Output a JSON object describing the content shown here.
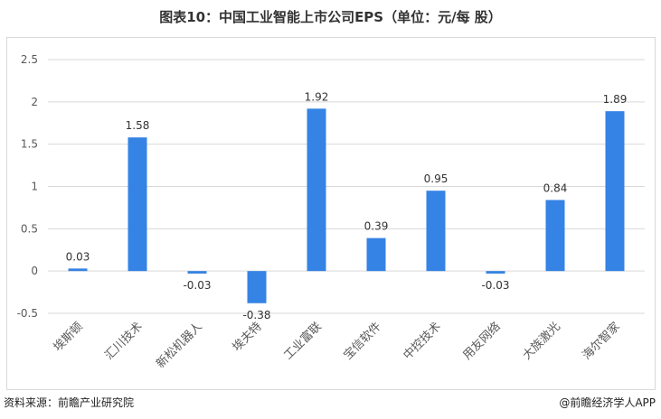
{
  "title": "图表10：中国工业智能上市公司EPS（单位：元/每 股）",
  "source": "资料来源：前瞻产业研究院",
  "brand": "@前瞻经济学人APP",
  "colors": {
    "bar": "#3583e4",
    "grid": "#d9d9d9",
    "axis_text": "#595959"
  },
  "chart_data": {
    "type": "bar",
    "title": "图表10：中国工业智能上市公司EPS（单位：元/每 股）",
    "xlabel": "",
    "ylabel": "",
    "categories": [
      "埃斯顿",
      "汇川技术",
      "新松机器人",
      "埃夫特",
      "工业富联",
      "宝信软件",
      "中控技术",
      "用友网络",
      "大族激光",
      "海尔智家"
    ],
    "values": [
      0.03,
      1.58,
      -0.03,
      -0.38,
      1.92,
      0.39,
      0.95,
      -0.03,
      0.84,
      1.89
    ],
    "value_labels": [
      "0.03",
      "1.58",
      "-0.03",
      "-0.38",
      "1.92",
      "0.39",
      "0.95",
      "-0.03",
      "0.84",
      "1.89"
    ],
    "yticks": [
      2.5,
      2,
      1.5,
      1,
      0.5,
      0,
      -0.5
    ],
    "ytick_labels": [
      "2.5",
      "2",
      "1.5",
      "1",
      "0.5",
      "0",
      "-0.5"
    ],
    "ylim": [
      -0.5,
      2.5
    ],
    "grid": true,
    "legend": "none"
  }
}
